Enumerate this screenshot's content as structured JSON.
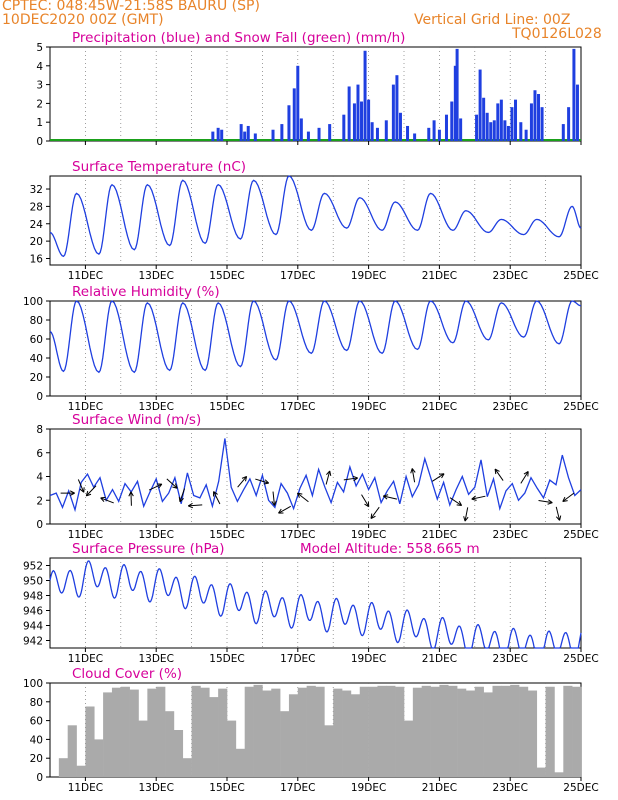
{
  "header": {
    "line1": "CPTEC:   048:45W-21:58S  BAURU (SP)",
    "line2": "10DEC2020 00Z (GMT)",
    "grid_note": "Vertical Grid Line: 00Z",
    "code": "TQ0126L028"
  },
  "colors": {
    "header": "#e8842a",
    "title": "#d6009a",
    "series": "#1f3fe0",
    "snow": "#1aa01a",
    "cloud": "#aaaaaa"
  },
  "x_axis": {
    "start_day": 10,
    "end_day": 25,
    "tick_labels": [
      "11DEC",
      "13DEC",
      "15DEC",
      "17DEC",
      "19DEC",
      "21DEC",
      "23DEC",
      "25DEC"
    ],
    "tick_days": [
      11,
      13,
      15,
      17,
      19,
      21,
      23,
      25
    ]
  },
  "chart_data": [
    {
      "type": "bar",
      "title": "Precipitation (blue) and Snow Fall (green) (mm/h)",
      "ylim": [
        0,
        5
      ],
      "yticks": [
        0,
        1,
        2,
        3,
        4,
        5
      ],
      "events": [
        {
          "day": 14.6,
          "value": 0.5
        },
        {
          "day": 14.75,
          "value": 0.7
        },
        {
          "day": 14.85,
          "value": 0.6
        },
        {
          "day": 15.4,
          "value": 0.9
        },
        {
          "day": 15.5,
          "value": 0.5
        },
        {
          "day": 15.6,
          "value": 0.8
        },
        {
          "day": 15.8,
          "value": 0.4
        },
        {
          "day": 16.3,
          "value": 0.6
        },
        {
          "day": 16.55,
          "value": 0.9
        },
        {
          "day": 16.75,
          "value": 1.9
        },
        {
          "day": 16.9,
          "value": 2.8
        },
        {
          "day": 17.0,
          "value": 4.0
        },
        {
          "day": 17.1,
          "value": 1.2
        },
        {
          "day": 17.3,
          "value": 0.5
        },
        {
          "day": 17.6,
          "value": 0.7
        },
        {
          "day": 17.9,
          "value": 0.9
        },
        {
          "day": 18.3,
          "value": 1.4
        },
        {
          "day": 18.45,
          "value": 2.9
        },
        {
          "day": 18.6,
          "value": 2.0
        },
        {
          "day": 18.7,
          "value": 3.0
        },
        {
          "day": 18.8,
          "value": 2.1
        },
        {
          "day": 18.9,
          "value": 4.8
        },
        {
          "day": 19.0,
          "value": 2.2
        },
        {
          "day": 19.1,
          "value": 1.0
        },
        {
          "day": 19.25,
          "value": 0.7
        },
        {
          "day": 19.5,
          "value": 1.1
        },
        {
          "day": 19.7,
          "value": 3.0
        },
        {
          "day": 19.8,
          "value": 3.5
        },
        {
          "day": 19.9,
          "value": 1.5
        },
        {
          "day": 20.1,
          "value": 0.8
        },
        {
          "day": 20.3,
          "value": 0.4
        },
        {
          "day": 20.7,
          "value": 0.7
        },
        {
          "day": 20.85,
          "value": 1.1
        },
        {
          "day": 21.0,
          "value": 0.6
        },
        {
          "day": 21.2,
          "value": 1.4
        },
        {
          "day": 21.35,
          "value": 2.1
        },
        {
          "day": 21.45,
          "value": 4.0
        },
        {
          "day": 21.5,
          "value": 4.9
        },
        {
          "day": 21.6,
          "value": 1.2
        },
        {
          "day": 22.05,
          "value": 1.4
        },
        {
          "day": 22.15,
          "value": 3.8
        },
        {
          "day": 22.25,
          "value": 2.3
        },
        {
          "day": 22.35,
          "value": 1.5
        },
        {
          "day": 22.45,
          "value": 1.0
        },
        {
          "day": 22.55,
          "value": 1.1
        },
        {
          "day": 22.65,
          "value": 2.0
        },
        {
          "day": 22.75,
          "value": 2.2
        },
        {
          "day": 22.85,
          "value": 1.1
        },
        {
          "day": 22.95,
          "value": 0.8
        },
        {
          "day": 23.05,
          "value": 1.8
        },
        {
          "day": 23.15,
          "value": 2.2
        },
        {
          "day": 23.3,
          "value": 1.0
        },
        {
          "day": 23.45,
          "value": 0.6
        },
        {
          "day": 23.6,
          "value": 2.0
        },
        {
          "day": 23.7,
          "value": 2.7
        },
        {
          "day": 23.8,
          "value": 2.5
        },
        {
          "day": 23.9,
          "value": 1.8
        },
        {
          "day": 24.5,
          "value": 0.9
        },
        {
          "day": 24.65,
          "value": 1.8
        },
        {
          "day": 24.8,
          "value": 4.9
        },
        {
          "day": 24.9,
          "value": 3.0
        }
      ],
      "snow_values": 0
    },
    {
      "type": "line",
      "title": "Surface Temperature (nC)",
      "ylim": [
        14.5,
        35
      ],
      "yticks": [
        16,
        20,
        24,
        28,
        32
      ],
      "daily_min": [
        16.5,
        17.0,
        18.0,
        19.0,
        19.5,
        20.5,
        21.5,
        22.5,
        23.0,
        22.5,
        22.5,
        22.5,
        22.0,
        21.5,
        21.0
      ],
      "daily_max": [
        31.0,
        33.0,
        33.0,
        34.0,
        33.0,
        34.0,
        35.0,
        31.0,
        30.0,
        29.0,
        31.0,
        27.0,
        25.0,
        25.0,
        28.0
      ],
      "initial": 22.0,
      "final": 23.0
    },
    {
      "type": "line",
      "title": "Relative Humidity (%)",
      "ylim": [
        0,
        100
      ],
      "yticks": [
        0,
        20,
        40,
        60,
        80,
        100
      ],
      "daily_min": [
        26,
        25,
        25,
        27,
        27,
        31,
        38,
        45,
        48,
        45,
        49,
        56,
        59,
        62,
        55
      ],
      "daily_max": [
        100,
        100,
        98,
        98,
        98,
        100,
        100,
        100,
        100,
        100,
        100,
        100,
        98,
        100,
        100
      ],
      "initial": 68,
      "final": 95
    },
    {
      "type": "line",
      "title": "Surface Wind (m/s)",
      "ylim": [
        0,
        8
      ],
      "yticks": [
        0,
        2,
        4,
        6,
        8
      ],
      "values": [
        2.4,
        2.6,
        1.4,
        2.8,
        1.2,
        3.5,
        4.2,
        3.1,
        3.9,
        2.0,
        2.9,
        1.9,
        3.4,
        2.7,
        3.6,
        1.5,
        2.7,
        3.8,
        1.9,
        2.6,
        3.9,
        1.7,
        4.3,
        2.4,
        2.2,
        3.3,
        1.5,
        3.6,
        7.2,
        3.1,
        1.9,
        2.9,
        3.8,
        2.4,
        4.1,
        2.0,
        1.4,
        3.4,
        2.6,
        1.3,
        3.0,
        4.1,
        2.4,
        4.6,
        3.1,
        1.8,
        3.5,
        2.7,
        4.8,
        3.2,
        4.2,
        2.9,
        3.9,
        1.8,
        2.8,
        3.6,
        1.7,
        4.0,
        2.3,
        3.3,
        5.5,
        3.8,
        2.1,
        3.5,
        1.6,
        2.9,
        4.0,
        2.5,
        3.1,
        5.4,
        2.3,
        3.8,
        1.3,
        2.8,
        3.4,
        2.0,
        2.6,
        3.9,
        3.0,
        2.2,
        3.7,
        3.3,
        5.8,
        3.9,
        2.4,
        2.9
      ]
    },
    {
      "type": "line",
      "title": "Surface Pressure (hPa)",
      "annotation": "Model Altitude: 558.665 m",
      "ylim": [
        941,
        953
      ],
      "yticks": [
        942,
        944,
        946,
        948,
        950,
        952
      ],
      "trend": [
        949.0,
        950.5,
        950.0,
        949.5,
        948.5,
        947.5,
        946.5,
        946.0,
        945.5,
        945.0,
        944.0,
        943.0,
        942.0,
        941.5,
        941.0,
        942.0
      ],
      "amplitude": 1.8
    },
    {
      "type": "bar",
      "title": "Cloud Cover (%)",
      "ylim": [
        0,
        100
      ],
      "yticks": [
        0,
        20,
        40,
        60,
        80,
        100
      ],
      "values": [
        0,
        20,
        55,
        12,
        75,
        40,
        90,
        95,
        96,
        93,
        60,
        94,
        96,
        70,
        50,
        20,
        97,
        95,
        85,
        94,
        60,
        30,
        96,
        98,
        92,
        94,
        70,
        88,
        95,
        97,
        96,
        55,
        94,
        92,
        88,
        96,
        96,
        97,
        97,
        96,
        60,
        95,
        97,
        96,
        98,
        97,
        94,
        92,
        96,
        90,
        97,
        97,
        98,
        96,
        92,
        10,
        96,
        5,
        97,
        96
      ]
    }
  ]
}
